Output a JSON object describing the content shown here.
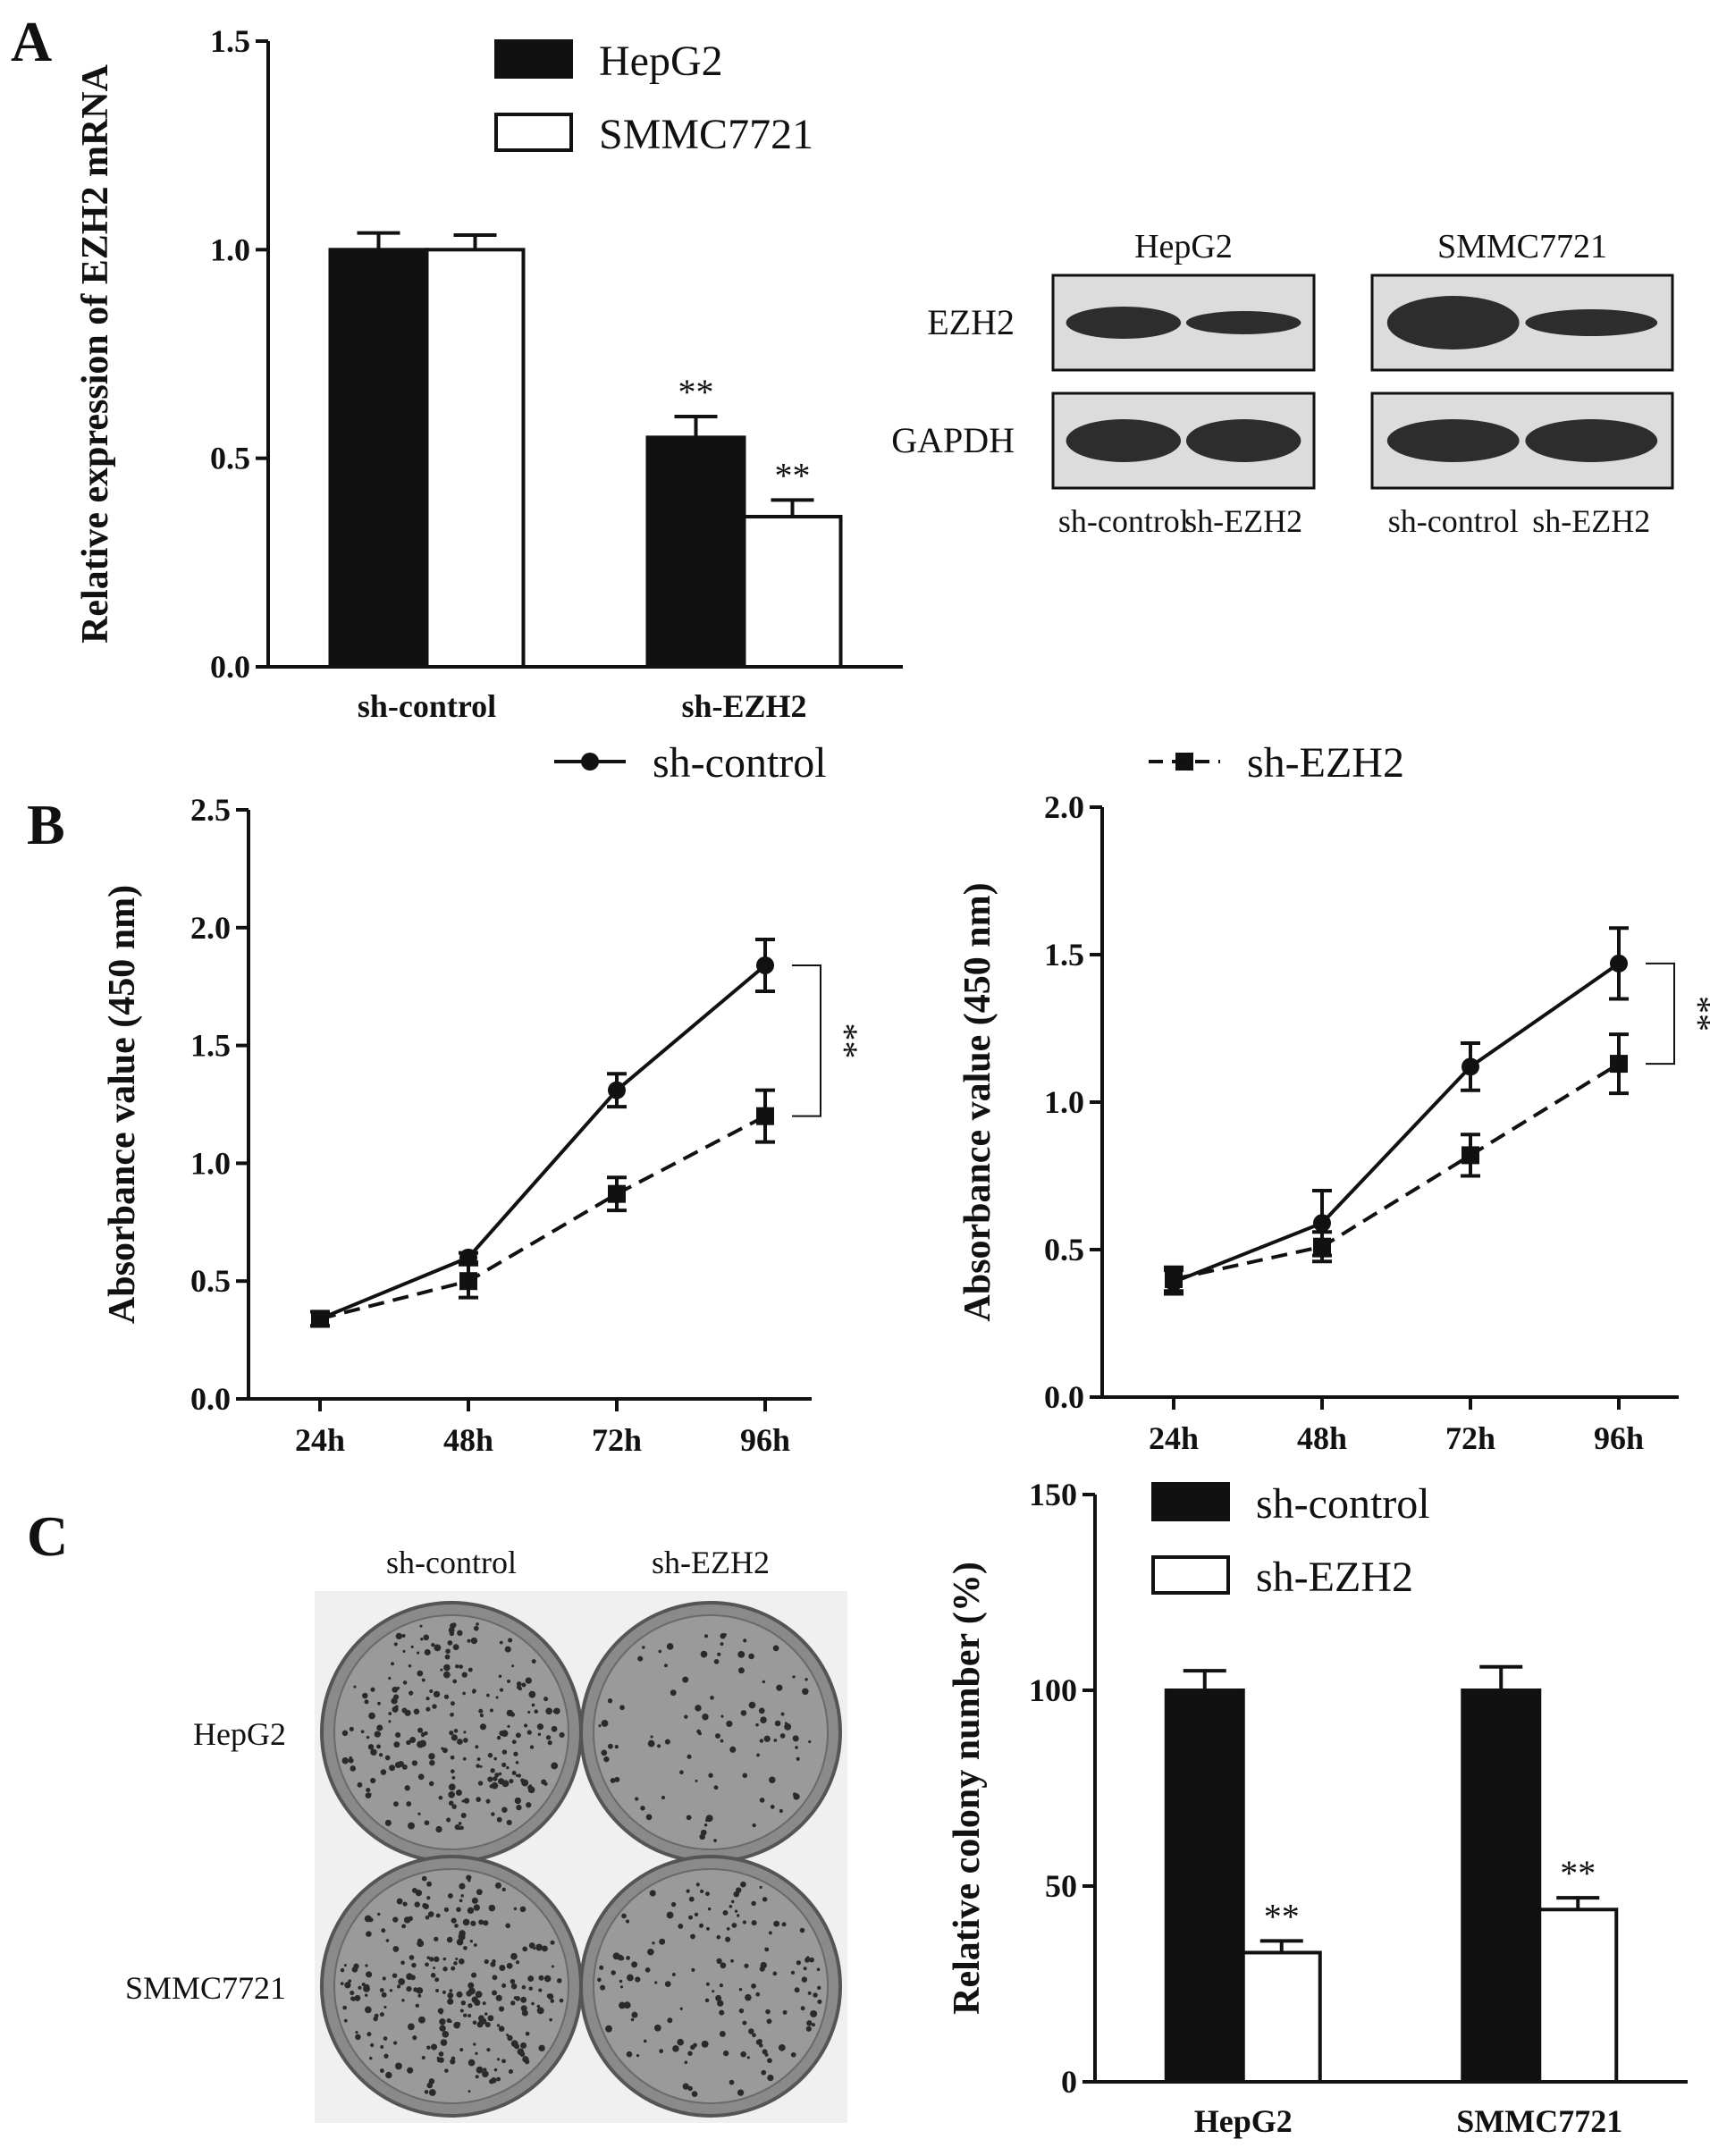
{
  "panels": {
    "A": "A",
    "B": "B",
    "C": "C"
  },
  "colors": {
    "ink": "#111111",
    "filled": "#111111",
    "open": "#ffffff",
    "blot_bg": "#dcdcdc",
    "plate": "#8a8a8a"
  },
  "chart_data": [
    {
      "id": "A_mrna",
      "type": "bar",
      "ylabel": "Relative expression of EZH2 mRNA",
      "ylim": [
        0,
        1.5
      ],
      "yticks": [
        "0.0",
        "0.5",
        "1.0",
        "1.5"
      ],
      "categories": [
        "sh-control",
        "sh-EZH2"
      ],
      "series": [
        {
          "name": "HepG2",
          "values": [
            1.0,
            0.55
          ],
          "errors": [
            0.04,
            0.05
          ],
          "fill": "filled"
        },
        {
          "name": "SMMC7721",
          "values": [
            1.0,
            0.36
          ],
          "errors": [
            0.035,
            0.04
          ],
          "fill": "open"
        }
      ],
      "significance": [
        {
          "category": 1,
          "series": 0,
          "label": "**"
        },
        {
          "category": 1,
          "series": 1,
          "label": "**"
        }
      ],
      "legend": "top"
    },
    {
      "id": "B_hepg2",
      "type": "line",
      "ylabel": "Absorbance value (450 nm)",
      "ylim": [
        0,
        2.5
      ],
      "yticks": [
        "0.0",
        "0.5",
        "1.0",
        "1.5",
        "2.0",
        "2.5"
      ],
      "x": [
        "24h",
        "48h",
        "72h",
        "96h"
      ],
      "series": [
        {
          "name": "sh-control",
          "values": [
            0.34,
            0.6,
            1.31,
            1.84
          ],
          "errors": [
            0.03,
            0.02,
            0.07,
            0.11
          ],
          "style": "solid",
          "marker": "circle"
        },
        {
          "name": "sh-EZH2",
          "values": [
            0.34,
            0.5,
            0.87,
            1.2
          ],
          "errors": [
            0.03,
            0.07,
            0.07,
            0.11
          ],
          "style": "dashed",
          "marker": "square"
        }
      ],
      "bracket": {
        "label": "**",
        "x": "96h"
      }
    },
    {
      "id": "B_smmc7721",
      "type": "line",
      "ylabel": "Absorbance value (450 nm)",
      "ylim": [
        0,
        2.0
      ],
      "yticks": [
        "0.0",
        "0.5",
        "1.0",
        "1.5",
        "2.0"
      ],
      "x": [
        "24h",
        "48h",
        "72h",
        "96h"
      ],
      "series": [
        {
          "name": "sh-control",
          "values": [
            0.39,
            0.59,
            1.12,
            1.47
          ],
          "errors": [
            0.04,
            0.11,
            0.08,
            0.12
          ],
          "style": "solid",
          "marker": "circle"
        },
        {
          "name": "sh-EZH2",
          "values": [
            0.4,
            0.51,
            0.82,
            1.13
          ],
          "errors": [
            0.04,
            0.05,
            0.07,
            0.1
          ],
          "style": "dashed",
          "marker": "square"
        }
      ],
      "bracket": {
        "label": "**",
        "x": "96h"
      }
    },
    {
      "id": "C_colony",
      "type": "bar",
      "ylabel": "Relative colony number (%)",
      "ylim": [
        0,
        150
      ],
      "yticks": [
        "0",
        "50",
        "100",
        "150"
      ],
      "categories": [
        "HepG2",
        "SMMC7721"
      ],
      "series": [
        {
          "name": "sh-control",
          "values": [
            100,
            100
          ],
          "errors": [
            5,
            6
          ],
          "fill": "filled"
        },
        {
          "name": "sh-EZH2",
          "values": [
            33,
            44
          ],
          "errors": [
            3,
            3
          ],
          "fill": "open"
        }
      ],
      "significance": [
        {
          "category": 0,
          "series": 1,
          "label": "**"
        },
        {
          "category": 1,
          "series": 1,
          "label": "**"
        }
      ],
      "legend": "top"
    }
  ],
  "line_legend": [
    {
      "label": "sh-control",
      "style": "solid",
      "marker": "circle"
    },
    {
      "label": "sh-EZH2",
      "style": "dashed",
      "marker": "square"
    }
  ],
  "western": {
    "groups": [
      "HepG2",
      "SMMC7721"
    ],
    "rows": [
      "EZH2",
      "GAPDH"
    ],
    "lanes": [
      "sh-control",
      "sh-EZH2",
      "sh-control",
      "sh-EZH2"
    ]
  },
  "colony_photo": {
    "cols": [
      "sh-control",
      "sh-EZH2"
    ],
    "rows": [
      "HepG2",
      "SMMC7721"
    ],
    "density": [
      [
        0.9,
        0.35
      ],
      [
        1.0,
        0.55
      ]
    ]
  }
}
